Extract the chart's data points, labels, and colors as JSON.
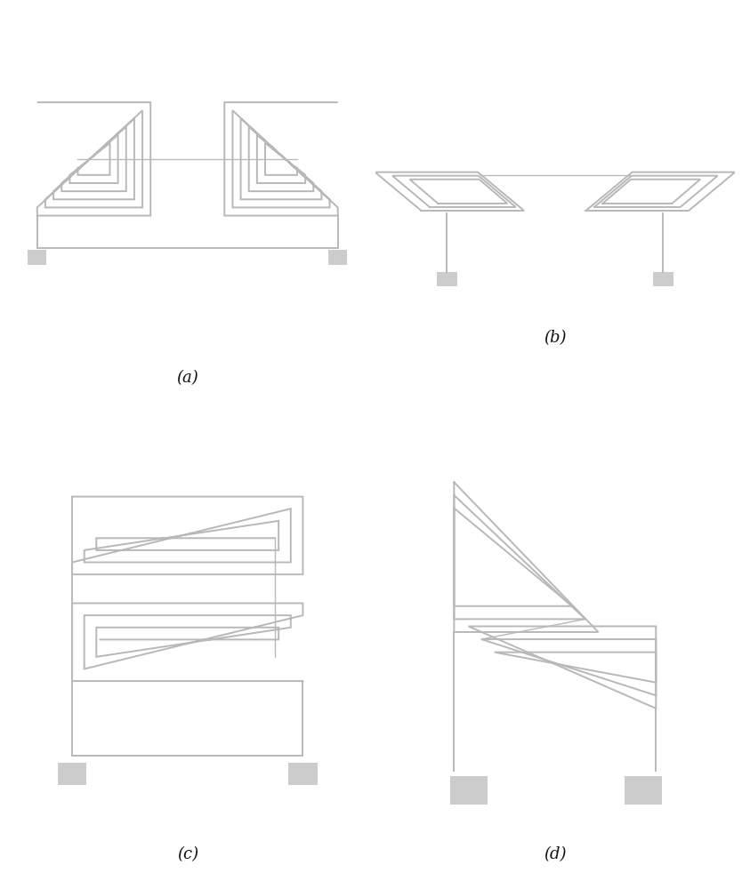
{
  "background": "#ffffff",
  "coil_color": "#b8b8b8",
  "terminal_color": "#cccccc",
  "label_color": "#111111",
  "line_width": 1.4,
  "labels": [
    "(a)",
    "(b)",
    "(c)",
    "(d)"
  ]
}
